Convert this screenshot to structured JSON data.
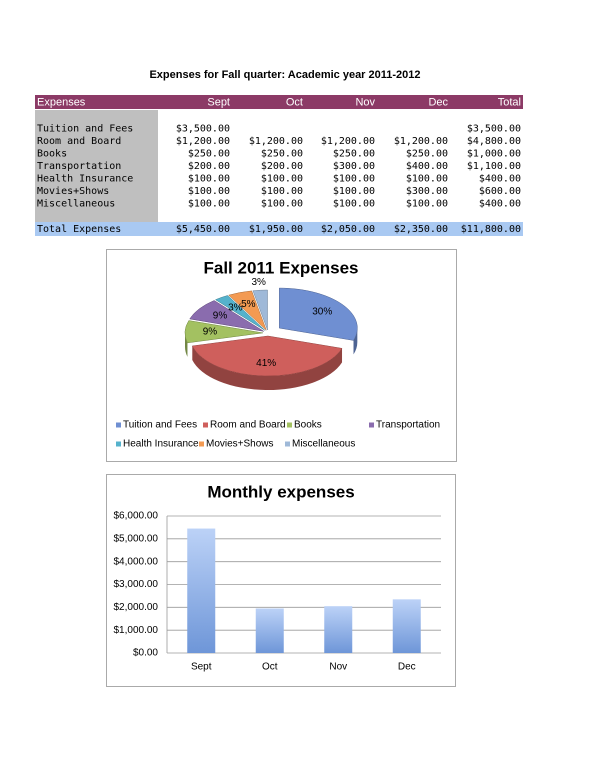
{
  "title": "Expenses for Fall quarter:  Academic year 2011-2012",
  "table": {
    "header": [
      "Expenses",
      "Sept",
      "Oct",
      "Nov",
      "Dec",
      "Total"
    ],
    "rows": [
      [
        "Tuition and Fees",
        "$3,500.00",
        null,
        null,
        null,
        "$3,500.00"
      ],
      [
        "Room and Board",
        "$1,200.00",
        "$1,200.00",
        "$1,200.00",
        "$1,200.00",
        "$4,800.00"
      ],
      [
        "Books",
        "$250.00",
        "$250.00",
        "$250.00",
        "$250.00",
        "$1,000.00"
      ],
      [
        "Transportation",
        "$200.00",
        "$200.00",
        "$300.00",
        "$400.00",
        "$1,100.00"
      ],
      [
        "Health Insurance",
        "$100.00",
        "$100.00",
        "$100.00",
        "$100.00",
        "$400.00"
      ],
      [
        "Movies+Shows",
        "$100.00",
        "$100.00",
        "$100.00",
        "$300.00",
        "$600.00"
      ],
      [
        "Miscellaneous",
        "$100.00",
        "$100.00",
        "$100.00",
        "$100.00",
        "$400.00"
      ]
    ],
    "total": [
      "Total Expenses",
      "$5,450.00",
      "$1,950.00",
      "$2,050.00",
      "$2,350.00",
      "$11,800.00"
    ]
  },
  "chart_data": [
    {
      "type": "pie",
      "title": "Fall 2011 Expenses",
      "categories": [
        "Tuition and Fees",
        "Room and Board",
        "Books",
        "Transportation",
        "Health Insurance",
        "Movies+Shows",
        "Miscellaneous"
      ],
      "values": [
        30,
        41,
        9,
        9,
        3,
        5,
        3
      ],
      "value_labels": [
        "30%",
        "41%",
        "9%",
        "9%",
        "3%",
        "5%",
        "3%"
      ],
      "colors": [
        "#6f8fd2",
        "#cf5f5c",
        "#a3c161",
        "#8a6cae",
        "#55b2cc",
        "#f39a52",
        "#9fb9d8"
      ],
      "legend": "bottom"
    },
    {
      "type": "bar",
      "title": "Monthly expenses",
      "categories": [
        "Sept",
        "Oct",
        "Nov",
        "Dec"
      ],
      "values": [
        5450,
        1950,
        2050,
        2350
      ],
      "ylim": [
        0,
        6000
      ],
      "yticks": [
        {
          "value": 0,
          "label": "$0.00"
        },
        {
          "value": 1000,
          "label": "$1,000.00"
        },
        {
          "value": 2000,
          "label": "$2,000.00"
        },
        {
          "value": 3000,
          "label": "$3,000.00"
        },
        {
          "value": 4000,
          "label": "$4,000.00"
        },
        {
          "value": 5000,
          "label": "$5,000.00"
        },
        {
          "value": 6000,
          "label": "$6,000.00"
        }
      ],
      "grid": true
    }
  ]
}
